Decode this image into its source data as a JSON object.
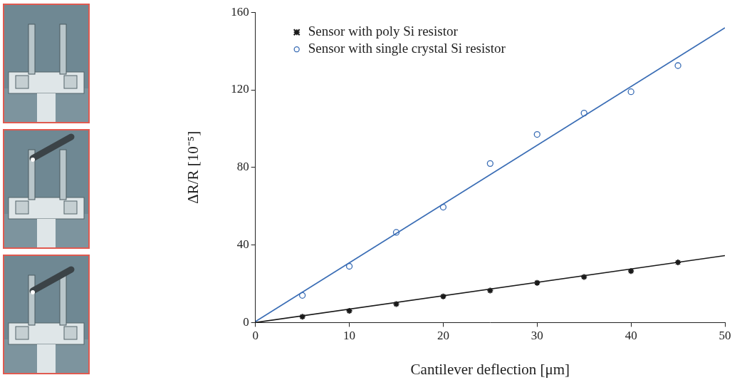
{
  "chart_data": {
    "type": "scatter",
    "x_label": "Cantilever deflection [μm]",
    "y_label": "ΔR/R [10⁻⁵]",
    "xlim": [
      0,
      50
    ],
    "xticks": [
      0,
      10,
      20,
      30,
      40,
      50
    ],
    "ylim": [
      0,
      160
    ],
    "yticks": [
      0,
      40,
      80,
      120,
      160
    ],
    "grid": false,
    "legend": "upper left",
    "series": [
      {
        "name": "Sensor with poly Si resistor",
        "color": "#1a1a1a",
        "marker": "star",
        "x": [
          5,
          10,
          15,
          20,
          25,
          30,
          35,
          40,
          45
        ],
        "values": [
          3,
          6,
          9.5,
          13.5,
          16.5,
          20.5,
          23.5,
          26.5,
          31
        ],
        "fit": {
          "x": [
            0,
            50
          ],
          "values": [
            0,
            34.5
          ]
        }
      },
      {
        "name": "Sensor with single crystal Si resistor",
        "color": "#3a6db5",
        "marker": "circle",
        "x": [
          5,
          10,
          15,
          20,
          25,
          30,
          35,
          40,
          45
        ],
        "values": [
          14,
          29,
          46.5,
          59.5,
          82,
          97,
          108,
          119,
          132.5
        ],
        "fit": {
          "x": [
            0,
            50
          ],
          "values": [
            0.5,
            152
          ]
        }
      }
    ]
  }
}
